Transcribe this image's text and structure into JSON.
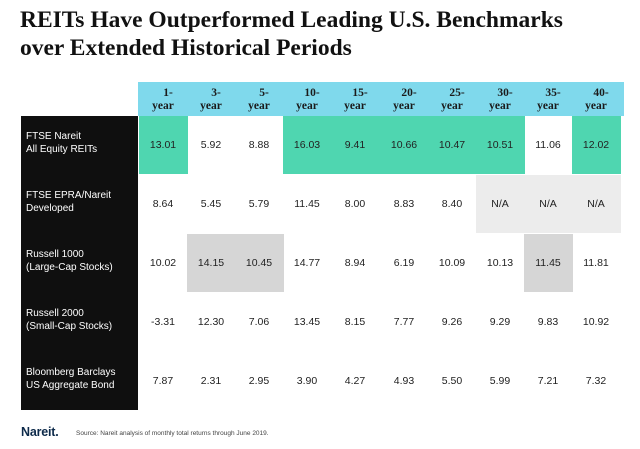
{
  "title": {
    "line1": "REITs Have Outperformed Leading U.S. Benchmarks",
    "line2": "over Extended Historical Periods"
  },
  "columns": [
    {
      "l1": "1-",
      "l2": "year"
    },
    {
      "l1": "3-",
      "l2": "year"
    },
    {
      "l1": "5-",
      "l2": "year"
    },
    {
      "l1": "10-",
      "l2": "year"
    },
    {
      "l1": "15-",
      "l2": "year"
    },
    {
      "l1": "20-",
      "l2": "year"
    },
    {
      "l1": "25-",
      "l2": "year"
    },
    {
      "l1": "30-",
      "l2": "year"
    },
    {
      "l1": "35-",
      "l2": "year"
    },
    {
      "l1": "40-",
      "l2": "year"
    }
  ],
  "rows": [
    {
      "label1": "FTSE Nareit",
      "label2": "All Equity REITs",
      "values": [
        "13.01",
        "5.92",
        "8.88",
        "16.03",
        "9.41",
        "10.66",
        "10.47",
        "10.51",
        "11.06",
        "12.02"
      ]
    },
    {
      "label1": "FTSE EPRA/Nareit",
      "label2": "Developed",
      "values": [
        "8.64",
        "5.45",
        "5.79",
        "11.45",
        "8.00",
        "8.83",
        "8.40",
        "N/A",
        "N/A",
        "N/A"
      ]
    },
    {
      "label1": "Russell 1000",
      "label2": "(Large-Cap Stocks)",
      "values": [
        "10.02",
        "14.15",
        "10.45",
        "14.77",
        "8.94",
        "6.19",
        "10.09",
        "10.13",
        "11.45",
        "11.81"
      ]
    },
    {
      "label1": "Russell 2000",
      "label2": "(Small-Cap Stocks)",
      "values": [
        "-3.31",
        "12.30",
        "7.06",
        "13.45",
        "8.15",
        "7.77",
        "9.26",
        "9.29",
        "9.83",
        "10.92"
      ]
    },
    {
      "label1": "Bloomberg Barclays",
      "label2": "US Aggregate Bond",
      "values": [
        "7.87",
        "2.31",
        "2.95",
        "3.90",
        "4.27",
        "4.93",
        "5.50",
        "5.99",
        "7.21",
        "7.32"
      ]
    }
  ],
  "highlights": {
    "teal": [
      [
        0,
        0
      ],
      [
        0,
        3
      ],
      [
        0,
        4
      ],
      [
        0,
        5
      ],
      [
        0,
        6
      ],
      [
        0,
        7
      ],
      [
        0,
        9
      ]
    ],
    "gray": [
      [
        2,
        1
      ],
      [
        2,
        2
      ],
      [
        2,
        8
      ]
    ],
    "lightgray": [
      [
        1,
        7
      ],
      [
        1,
        8
      ],
      [
        1,
        9
      ]
    ]
  },
  "colors": {
    "header_bg": "#7fd9ec",
    "teal_highlight": "#4fd6b0",
    "gray_highlight": "#d6d6d6",
    "label_bg": "#0f0f0f"
  },
  "footer": {
    "logo": "Nareit.",
    "source": "Source: Nareit analysis of monthly total returns through June 2019."
  }
}
